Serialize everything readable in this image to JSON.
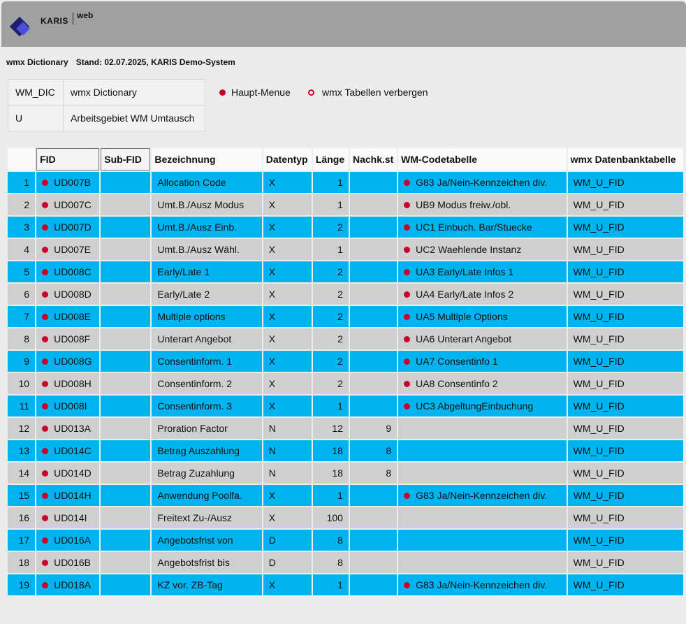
{
  "header": {
    "brand": "KARIS",
    "brand_suffix": "web"
  },
  "subtitle": {
    "left": "wmx Dictionary",
    "right": "Stand: 02.07.2025, KARIS Demo-System"
  },
  "info": [
    {
      "code": "WM_DIC",
      "desc": "wmx Dictionary"
    },
    {
      "code": "U",
      "desc": "Arbeitsgebiet WM Umtausch"
    }
  ],
  "menu": {
    "main_menu": "Haupt-Menue",
    "hide_tables": "wmx Tabellen verbergen"
  },
  "colors": {
    "row_blue": "#00b4f0",
    "row_grey": "#cfcfcf",
    "bullet": "#c8002a",
    "header_bar": "#a0a0a0"
  },
  "table": {
    "headers": {
      "nr": "",
      "fid": "FID",
      "subfid": "Sub-FID",
      "bezeichnung": "Bezeichnung",
      "datentyp": "Datentyp",
      "laenge": "Länge",
      "nachk": "Nachk.st",
      "codetabelle": "WM-Codetabelle",
      "dbtabelle": "wmx Datenbanktabelle"
    },
    "rows": [
      {
        "nr": "1",
        "fid": "UD007B",
        "subfid": "",
        "bez": "Allocation Code",
        "typ": "X",
        "len": "1",
        "nk": "",
        "code": "G83 Ja/Nein-Kennzeichen div.",
        "db": "WM_U_FID"
      },
      {
        "nr": "2",
        "fid": "UD007C",
        "subfid": "",
        "bez": "Umt.B./Ausz Modus",
        "typ": "X",
        "len": "1",
        "nk": "",
        "code": "UB9 Modus freiw./obl.",
        "db": "WM_U_FID"
      },
      {
        "nr": "3",
        "fid": "UD007D",
        "subfid": "",
        "bez": "Umt.B./Ausz Einb.",
        "typ": "X",
        "len": "2",
        "nk": "",
        "code": "UC1 Einbuch. Bar/Stuecke",
        "db": "WM_U_FID"
      },
      {
        "nr": "4",
        "fid": "UD007E",
        "subfid": "",
        "bez": "Umt.B./Ausz Wähl.",
        "typ": "X",
        "len": "1",
        "nk": "",
        "code": "UC2 Waehlende Instanz",
        "db": "WM_U_FID"
      },
      {
        "nr": "5",
        "fid": "UD008C",
        "subfid": "",
        "bez": "Early/Late 1",
        "typ": "X",
        "len": "2",
        "nk": "",
        "code": "UA3 Early/Late Infos 1",
        "db": "WM_U_FID"
      },
      {
        "nr": "6",
        "fid": "UD008D",
        "subfid": "",
        "bez": "Early/Late 2",
        "typ": "X",
        "len": "2",
        "nk": "",
        "code": "UA4 Early/Late Infos 2",
        "db": "WM_U_FID"
      },
      {
        "nr": "7",
        "fid": "UD008E",
        "subfid": "",
        "bez": "Multiple options",
        "typ": "X",
        "len": "2",
        "nk": "",
        "code": "UA5 Multiple Options",
        "db": "WM_U_FID"
      },
      {
        "nr": "8",
        "fid": "UD008F",
        "subfid": "",
        "bez": "Unterart Angebot",
        "typ": "X",
        "len": "2",
        "nk": "",
        "code": "UA6 Unterart Angebot",
        "db": "WM_U_FID"
      },
      {
        "nr": "9",
        "fid": "UD008G",
        "subfid": "",
        "bez": "Consentinform. 1",
        "typ": "X",
        "len": "2",
        "nk": "",
        "code": "UA7 Consentinfo 1",
        "db": "WM_U_FID"
      },
      {
        "nr": "10",
        "fid": "UD008H",
        "subfid": "",
        "bez": "Consentinform. 2",
        "typ": "X",
        "len": "2",
        "nk": "",
        "code": "UA8 Consentinfo 2",
        "db": "WM_U_FID"
      },
      {
        "nr": "11",
        "fid": "UD008I",
        "subfid": "",
        "bez": "Consentinform. 3",
        "typ": "X",
        "len": "1",
        "nk": "",
        "code": "UC3 AbgeltungEinbuchung",
        "db": "WM_U_FID"
      },
      {
        "nr": "12",
        "fid": "UD013A",
        "subfid": "",
        "bez": "Proration Factor",
        "typ": "N",
        "len": "12",
        "nk": "9",
        "code": "",
        "db": "WM_U_FID"
      },
      {
        "nr": "13",
        "fid": "UD014C",
        "subfid": "",
        "bez": "Betrag Auszahlung",
        "typ": "N",
        "len": "18",
        "nk": "8",
        "code": "",
        "db": "WM_U_FID"
      },
      {
        "nr": "14",
        "fid": "UD014D",
        "subfid": "",
        "bez": "Betrag Zuzahlung",
        "typ": "N",
        "len": "18",
        "nk": "8",
        "code": "",
        "db": "WM_U_FID"
      },
      {
        "nr": "15",
        "fid": "UD014H",
        "subfid": "",
        "bez": "Anwendung Poolfa.",
        "typ": "X",
        "len": "1",
        "nk": "",
        "code": "G83 Ja/Nein-Kennzeichen div.",
        "db": "WM_U_FID"
      },
      {
        "nr": "16",
        "fid": "UD014I",
        "subfid": "",
        "bez": "Freitext Zu-/Ausz",
        "typ": "X",
        "len": "100",
        "nk": "",
        "code": "",
        "db": "WM_U_FID"
      },
      {
        "nr": "17",
        "fid": "UD016A",
        "subfid": "",
        "bez": "Angebotsfrist von",
        "typ": "D",
        "len": "8",
        "nk": "",
        "code": "",
        "db": "WM_U_FID"
      },
      {
        "nr": "18",
        "fid": "UD016B",
        "subfid": "",
        "bez": "Angebotsfrist bis",
        "typ": "D",
        "len": "8",
        "nk": "",
        "code": "",
        "db": "WM_U_FID"
      },
      {
        "nr": "19",
        "fid": "UD018A",
        "subfid": "",
        "bez": "KZ vor. ZB-Tag",
        "typ": "X",
        "len": "1",
        "nk": "",
        "code": "G83 Ja/Nein-Kennzeichen div.",
        "db": "WM_U_FID"
      }
    ]
  }
}
